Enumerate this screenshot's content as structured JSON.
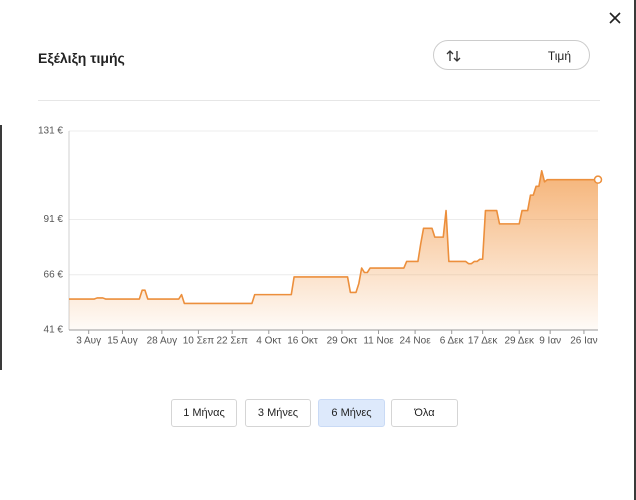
{
  "header": {
    "title": "Εξέλιξη τιμής",
    "sort_button": "Τιμή"
  },
  "chart_data": {
    "type": "line",
    "color": "#ec8f3c",
    "grid": true,
    "ylim": [
      41,
      131
    ],
    "yticks": [
      {
        "value": 41,
        "label": "41 €"
      },
      {
        "value": 66,
        "label": "66 €"
      },
      {
        "value": 91,
        "label": "91 €"
      },
      {
        "value": 131,
        "label": "131 €"
      }
    ],
    "categories": [
      null,
      null,
      null,
      null,
      null,
      null,
      null,
      "3 Αυγ",
      null,
      null,
      null,
      null,
      null,
      null,
      null,
      null,
      null,
      null,
      null,
      "15 Αυγ",
      null,
      null,
      null,
      null,
      null,
      null,
      null,
      null,
      null,
      null,
      null,
      null,
      null,
      "28 Αυγ",
      null,
      null,
      null,
      null,
      null,
      null,
      null,
      null,
      null,
      null,
      null,
      null,
      "10 Σεπ",
      null,
      null,
      null,
      null,
      null,
      null,
      null,
      null,
      null,
      null,
      null,
      "22 Σεπ",
      null,
      null,
      null,
      null,
      null,
      null,
      null,
      null,
      null,
      null,
      null,
      null,
      "4 Οκτ",
      null,
      null,
      null,
      null,
      null,
      null,
      null,
      null,
      null,
      null,
      null,
      "16 Οκτ",
      null,
      null,
      null,
      null,
      null,
      null,
      null,
      null,
      null,
      null,
      null,
      null,
      null,
      "29 Οκτ",
      null,
      null,
      null,
      null,
      null,
      null,
      null,
      null,
      null,
      null,
      null,
      null,
      "11 Νοε",
      null,
      null,
      null,
      null,
      null,
      null,
      null,
      null,
      null,
      null,
      null,
      null,
      "24 Νοε",
      null,
      null,
      null,
      null,
      null,
      null,
      null,
      null,
      null,
      null,
      null,
      null,
      "6 Δεκ",
      null,
      null,
      null,
      null,
      null,
      null,
      null,
      null,
      null,
      null,
      "17 Δεκ",
      null,
      null,
      null,
      null,
      null,
      null,
      null,
      null,
      null,
      null,
      null,
      null,
      "29 Δεκ",
      null,
      null,
      null,
      null,
      null,
      null,
      null,
      null,
      null,
      null,
      "9 Ιαν",
      null,
      null,
      null,
      null,
      null,
      null,
      null,
      null,
      null,
      null,
      null,
      "26 Ιαν",
      null,
      null,
      null,
      null,
      null
    ],
    "values": [
      55,
      55,
      55,
      55,
      55,
      55,
      55,
      55,
      55,
      55,
      55.5,
      55.5,
      55.5,
      55,
      55,
      55,
      55,
      55,
      55,
      55,
      55,
      55,
      55,
      55,
      55,
      55,
      59,
      59,
      55,
      55,
      55,
      55,
      55,
      55,
      55,
      55,
      55,
      55,
      55,
      55,
      57,
      53,
      53,
      53,
      53,
      53,
      53,
      53,
      53,
      53,
      53,
      53,
      53,
      53,
      53,
      53,
      53,
      53,
      53,
      53,
      53,
      53,
      53,
      53,
      53,
      53,
      57,
      57,
      57,
      57,
      57,
      57,
      57,
      57,
      57,
      57,
      57,
      57,
      57,
      57,
      65,
      65,
      65,
      65,
      65,
      65,
      65,
      65,
      65,
      65,
      65,
      65,
      65,
      65,
      65,
      65,
      65,
      65,
      65,
      65,
      58,
      58,
      58,
      62,
      69,
      67,
      67,
      69,
      69,
      69,
      69,
      69,
      69,
      69,
      69,
      69,
      69,
      69,
      69,
      69,
      72,
      72,
      72,
      72,
      72,
      80,
      87,
      87,
      87,
      87,
      83,
      83,
      83,
      83,
      95,
      72,
      72,
      72,
      72,
      72,
      72,
      72,
      71,
      71,
      72,
      72,
      73,
      73,
      95,
      95,
      95,
      95,
      95,
      89,
      89,
      89,
      89,
      89,
      89,
      89,
      89,
      95,
      95,
      95,
      102,
      102,
      106,
      106,
      113,
      108,
      109,
      109,
      109,
      109,
      109,
      109,
      109,
      109,
      109,
      109,
      109,
      109,
      109,
      109,
      109,
      109,
      109,
      109,
      109
    ]
  },
  "range_buttons": {
    "options": [
      "1 Μήνας",
      "3 Μήνες",
      "6 Μήνες",
      "Όλα"
    ],
    "selected": 2
  }
}
